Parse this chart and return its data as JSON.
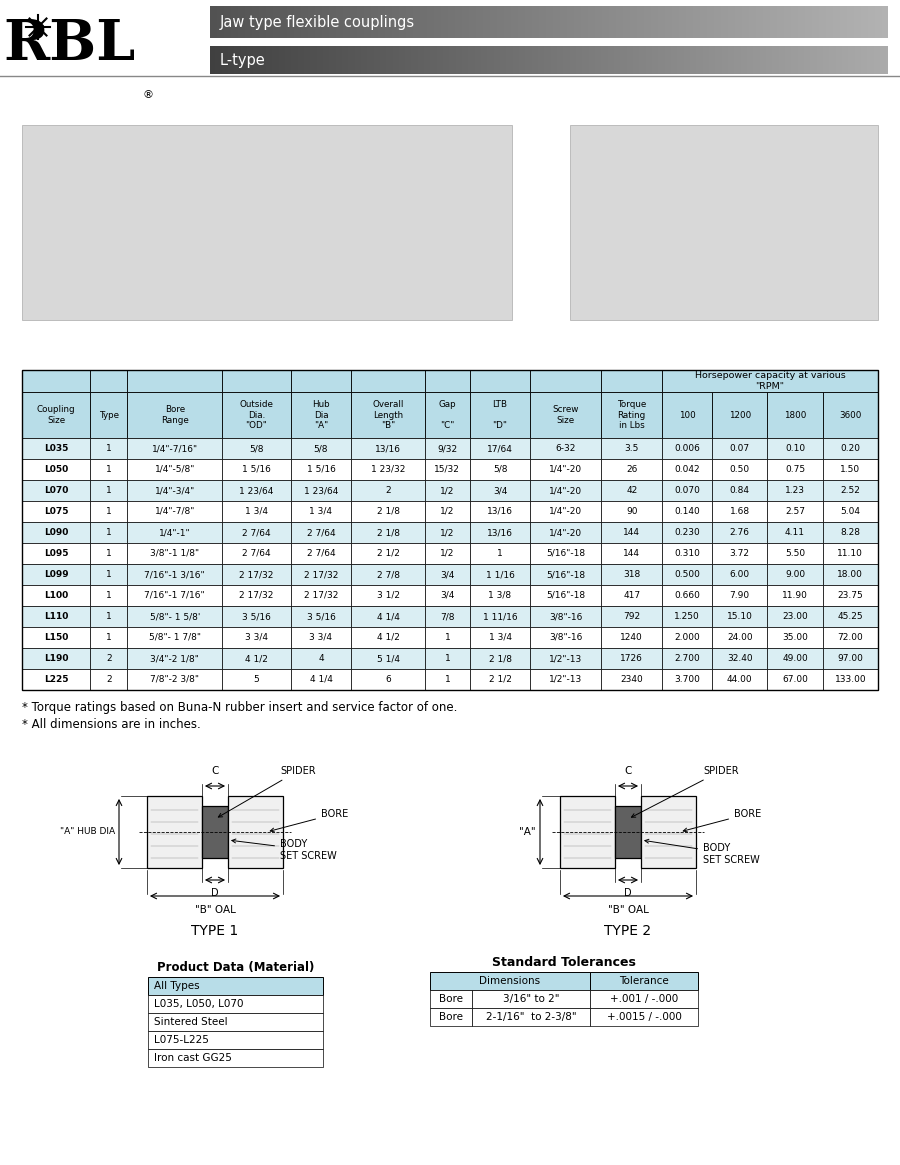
{
  "header_title1": "Jaw type flexible couplings",
  "header_title2": "L-type",
  "table_header_bg": "#b8dde8",
  "table_row_bg_even": "#daeef3",
  "table_row_bg_odd": "#ffffff",
  "col_widths_rel": [
    52,
    28,
    72,
    52,
    46,
    56,
    34,
    46,
    54,
    46,
    38,
    42,
    42,
    42
  ],
  "col_labels": [
    "Coupling\nSize",
    "Type",
    "Bore\nRange",
    "Outside\nDia.\n\"OD\"",
    "Hub\nDia\n\"A\"",
    "Overall\nLength\n\"B\"",
    "Gap\n\n\"C\"",
    "LTB\n\n\"D\"",
    "Screw\nSize",
    "Torque\nRating\nin Lbs",
    "100",
    "1200",
    "1800",
    "3600"
  ],
  "rows": [
    [
      "L035",
      "1",
      "1/4\"-7/16\"",
      "5/8",
      "5/8",
      "13/16",
      "9/32",
      "17/64",
      "6-32",
      "3.5",
      "0.006",
      "0.07",
      "0.10",
      "0.20"
    ],
    [
      "L050",
      "1",
      "1/4\"-5/8\"",
      "1 5/16",
      "1 5/16",
      "1 23/32",
      "15/32",
      "5/8",
      "1/4\"-20",
      "26",
      "0.042",
      "0.50",
      "0.75",
      "1.50"
    ],
    [
      "L070",
      "1",
      "1/4\"-3/4\"",
      "1 23/64",
      "1 23/64",
      "2",
      "1/2",
      "3/4",
      "1/4\"-20",
      "42",
      "0.070",
      "0.84",
      "1.23",
      "2.52"
    ],
    [
      "L075",
      "1",
      "1/4\"-7/8\"",
      "1 3/4",
      "1 3/4",
      "2 1/8",
      "1/2",
      "13/16",
      "1/4\"-20",
      "90",
      "0.140",
      "1.68",
      "2.57",
      "5.04"
    ],
    [
      "L090",
      "1",
      "1/4\"-1\"",
      "2 7/64",
      "2 7/64",
      "2 1/8",
      "1/2",
      "13/16",
      "1/4\"-20",
      "144",
      "0.230",
      "2.76",
      "4.11",
      "8.28"
    ],
    [
      "L095",
      "1",
      "3/8\"-1 1/8\"",
      "2 7/64",
      "2 7/64",
      "2 1/2",
      "1/2",
      "1",
      "5/16\"-18",
      "144",
      "0.310",
      "3.72",
      "5.50",
      "11.10"
    ],
    [
      "L099",
      "1",
      "7/16\"-1 3/16\"",
      "2 17/32",
      "2 17/32",
      "2 7/8",
      "3/4",
      "1 1/16",
      "5/16\"-18",
      "318",
      "0.500",
      "6.00",
      "9.00",
      "18.00"
    ],
    [
      "L100",
      "1",
      "7/16\"-1 7/16\"",
      "2 17/32",
      "2 17/32",
      "3 1/2",
      "3/4",
      "1 3/8",
      "5/16\"-18",
      "417",
      "0.660",
      "7.90",
      "11.90",
      "23.75"
    ],
    [
      "L110",
      "1",
      "5/8\"- 1 5/8'",
      "3 5/16",
      "3 5/16",
      "4 1/4",
      "7/8",
      "1 11/16",
      "3/8\"-16",
      "792",
      "1.250",
      "15.10",
      "23.00",
      "45.25"
    ],
    [
      "L150",
      "1",
      "5/8\"- 1 7/8\"",
      "3 3/4",
      "3 3/4",
      "4 1/2",
      "1",
      "1 3/4",
      "3/8\"-16",
      "1240",
      "2.000",
      "24.00",
      "35.00",
      "72.00"
    ],
    [
      "L190",
      "2",
      "3/4\"-2 1/8\"",
      "4 1/2",
      "4",
      "5 1/4",
      "1",
      "2 1/8",
      "1/2\"-13",
      "1726",
      "2.700",
      "32.40",
      "49.00",
      "97.00"
    ],
    [
      "L225",
      "2",
      "7/8\"-2 3/8\"",
      "5",
      "4 1/4",
      "6",
      "1",
      "2 1/2",
      "1/2\"-13",
      "2340",
      "3.700",
      "44.00",
      "67.00",
      "133.00"
    ]
  ],
  "footnote1": "* Torque ratings based on Buna-N rubber insert and service factor of one.",
  "footnote2": "* All dimensions are in inches.",
  "product_data_title": "Product Data (Material)",
  "product_data_rows": [
    "All Types",
    "L035, L050, L070",
    "Sintered Steel",
    "L075-L225",
    "Iron cast GG25"
  ],
  "std_tol_title": "Standard Tolerances",
  "std_tol_rows": [
    [
      "Bore",
      "3/16\" to 2\"",
      "+.001 / -.000"
    ],
    [
      "Bore",
      "2-1/16\"  to 2-3/8\"",
      "+.0015 / -.000"
    ]
  ],
  "bg_color": "#ffffff"
}
